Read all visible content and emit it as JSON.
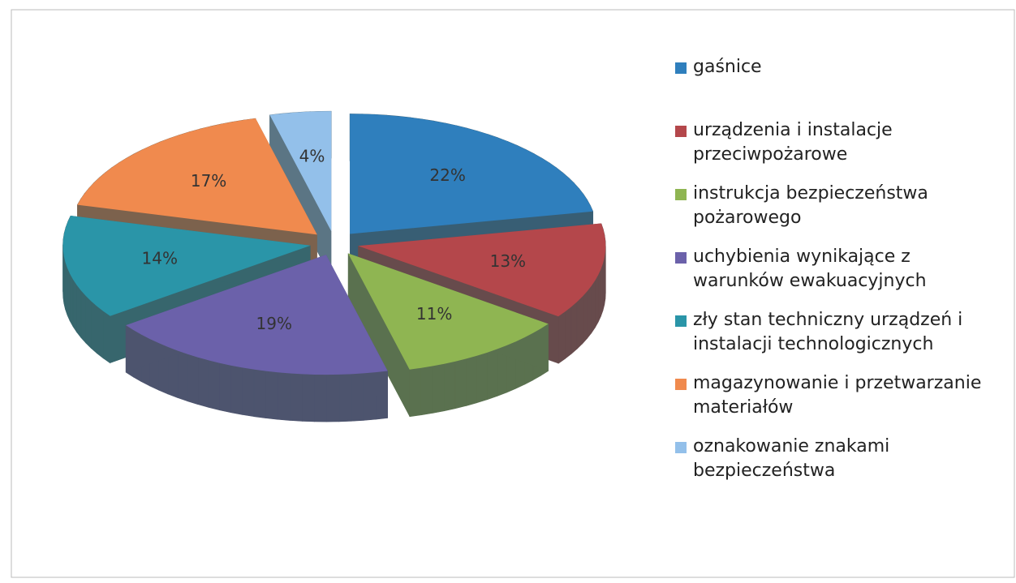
{
  "chart_data": {
    "type": "pie3d",
    "categories": [
      "gaśnice",
      "urządzenia i instalacje przeciwpożarowe",
      "instrukcja bezpieczeństwa pożarowego",
      "uchybienia wynikające z warunków ewakuacyjnych",
      "zły stan techniczny urządzeń i instalacji technologicznych",
      "magazynowanie i przetwarzanie materiałów",
      "oznakowanie znakami bezpieczeństwa"
    ],
    "values": [
      22,
      13,
      11,
      19,
      14,
      17,
      4
    ],
    "value_labels": [
      "22%",
      "13%",
      "11%",
      "19%",
      "14%",
      "17%",
      "4%"
    ],
    "colors": [
      "#2f7fbd",
      "#b4474b",
      "#8fb552",
      "#6b61aa",
      "#2a95a8",
      "#f08a4e",
      "#93c0ea"
    ],
    "legend": "right"
  }
}
